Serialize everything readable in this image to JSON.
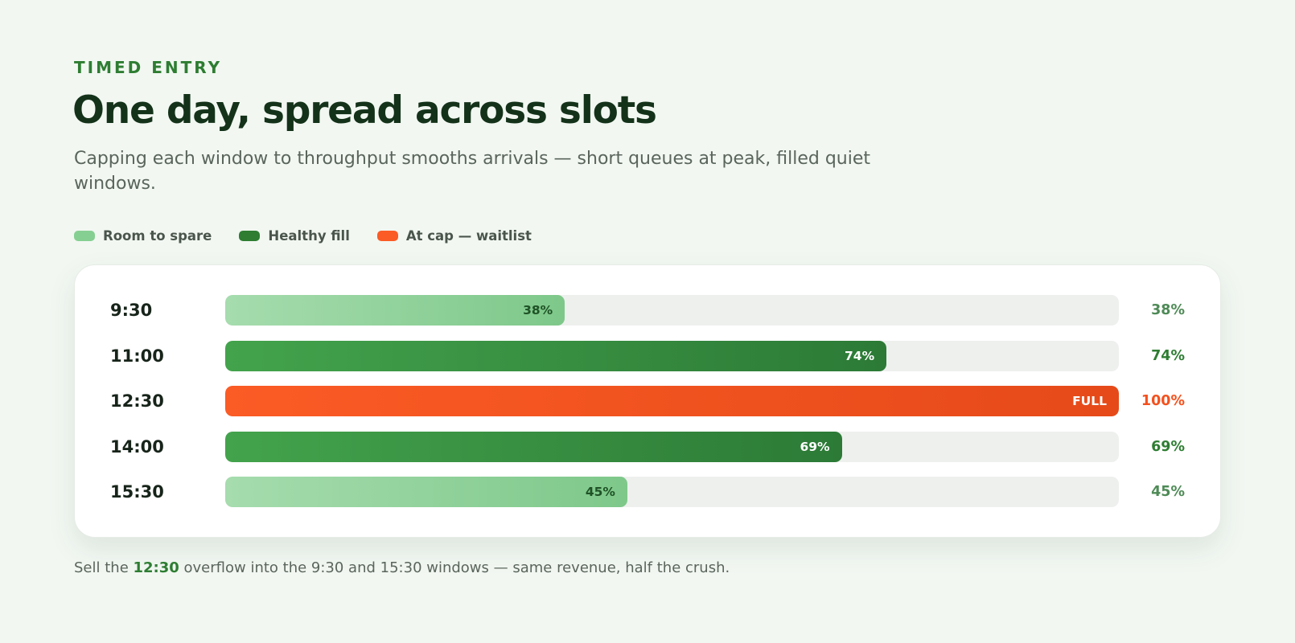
{
  "header": {
    "eyebrow": "TIMED ENTRY",
    "title": "One day, spread across slots",
    "subtitle": "Capping each window to throughput smooths arrivals — short queues at peak, filled quiet windows."
  },
  "legend": [
    {
      "label": "Room to spare",
      "color": "#86cf92"
    },
    {
      "label": "Healthy fill",
      "color": "#2e7d32"
    },
    {
      "label": "At cap — waitlist",
      "color": "#fb5b25"
    }
  ],
  "colors": {
    "spare": "#86cf92",
    "healthy": "#2e7d32",
    "cap": "#fb5b25",
    "accent": "#2e7d32"
  },
  "chart_data": {
    "type": "bar",
    "orientation": "horizontal",
    "categories": [
      "9:30",
      "11:00",
      "12:30",
      "14:00",
      "15:30"
    ],
    "values": [
      38,
      74,
      100,
      69,
      45
    ],
    "xlim": [
      0,
      100
    ],
    "bar_labels": [
      "38%",
      "74%",
      "FULL",
      "69%",
      "45%"
    ],
    "value_labels": [
      "38%",
      "74%",
      "100%",
      "69%",
      "45%"
    ],
    "status": [
      "spare",
      "healthy",
      "cap",
      "healthy",
      "spare"
    ],
    "grid": false,
    "legend_position": "top-left"
  },
  "footnote": {
    "before": "Sell the ",
    "highlight": "12:30",
    "after": " overflow into the 9:30 and 15:30 windows — same revenue, half the crush."
  }
}
